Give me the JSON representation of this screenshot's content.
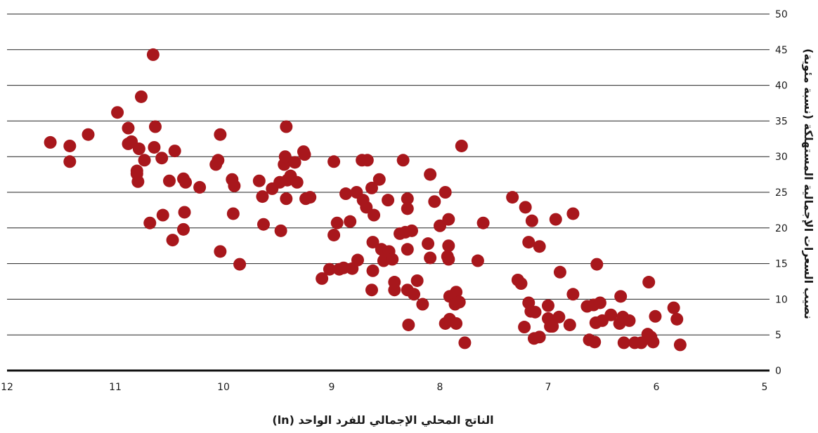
{
  "chart_data": {
    "type": "scatter",
    "xlabel": "الناتج المحلي الإجمالي للفرد الواحد (ln)",
    "ylabel": "نصيب السعرات الإجمالية المستهلكة (نسبة مئوية)",
    "xlim": [
      12,
      5
    ],
    "ylim": [
      0,
      50
    ],
    "x_reversed": true,
    "x_ticks": [
      "12",
      "11",
      "10",
      "9",
      "8",
      "7",
      "6",
      "5"
    ],
    "y_ticks": [
      "0",
      "5",
      "10",
      "15",
      "20",
      "25",
      "30",
      "35",
      "40",
      "45",
      "50"
    ],
    "grid": "horizontal",
    "marker_color": "#a8171c",
    "points": [
      [
        11.6,
        32.0
      ],
      [
        11.42,
        31.5
      ],
      [
        11.42,
        29.3
      ],
      [
        11.25,
        33.1
      ],
      [
        10.98,
        36.2
      ],
      [
        10.88,
        34.0
      ],
      [
        10.88,
        31.8
      ],
      [
        10.85,
        32.1
      ],
      [
        10.8,
        28.0
      ],
      [
        10.8,
        27.6
      ],
      [
        10.79,
        26.5
      ],
      [
        10.78,
        31.1
      ],
      [
        10.76,
        38.4
      ],
      [
        10.73,
        29.5
      ],
      [
        10.68,
        20.7
      ],
      [
        10.65,
        44.3
      ],
      [
        10.64,
        31.3
      ],
      [
        10.63,
        34.2
      ],
      [
        10.57,
        29.8
      ],
      [
        10.56,
        21.8
      ],
      [
        10.5,
        26.6
      ],
      [
        10.47,
        18.3
      ],
      [
        10.45,
        30.8
      ],
      [
        10.37,
        26.9
      ],
      [
        10.36,
        22.2
      ],
      [
        10.37,
        19.8
      ],
      [
        10.35,
        26.4
      ],
      [
        10.22,
        25.7
      ],
      [
        10.07,
        28.9
      ],
      [
        10.05,
        29.5
      ],
      [
        10.03,
        16.7
      ],
      [
        10.03,
        33.1
      ],
      [
        9.92,
        26.8
      ],
      [
        9.91,
        22.0
      ],
      [
        9.9,
        25.9
      ],
      [
        9.85,
        14.9
      ],
      [
        9.67,
        26.6
      ],
      [
        9.64,
        24.4
      ],
      [
        9.63,
        20.5
      ],
      [
        9.55,
        25.5
      ],
      [
        9.48,
        26.4
      ],
      [
        9.47,
        19.6
      ],
      [
        9.44,
        28.9
      ],
      [
        9.43,
        30.0
      ],
      [
        9.42,
        34.2
      ],
      [
        9.42,
        24.1
      ],
      [
        9.41,
        26.7
      ],
      [
        9.38,
        27.3
      ],
      [
        9.34,
        29.2
      ],
      [
        9.32,
        26.4
      ],
      [
        9.26,
        30.7
      ],
      [
        9.24,
        24.1
      ],
      [
        9.25,
        30.3
      ],
      [
        9.2,
        24.3
      ],
      [
        9.09,
        12.9
      ],
      [
        9.02,
        14.2
      ],
      [
        8.98,
        29.3
      ],
      [
        8.98,
        19.0
      ],
      [
        8.95,
        20.7
      ],
      [
        8.93,
        14.2
      ],
      [
        8.89,
        14.4
      ],
      [
        8.87,
        24.8
      ],
      [
        8.83,
        20.9
      ],
      [
        8.81,
        14.3
      ],
      [
        8.77,
        25.0
      ],
      [
        8.76,
        15.5
      ],
      [
        8.72,
        29.5
      ],
      [
        8.71,
        23.9
      ],
      [
        8.68,
        22.9
      ],
      [
        8.67,
        29.5
      ],
      [
        8.63,
        25.6
      ],
      [
        8.62,
        18.0
      ],
      [
        8.63,
        11.3
      ],
      [
        8.62,
        14.0
      ],
      [
        8.61,
        21.8
      ],
      [
        8.56,
        26.8
      ],
      [
        8.54,
        17.0
      ],
      [
        8.52,
        15.4
      ],
      [
        8.5,
        16.0
      ],
      [
        8.48,
        23.9
      ],
      [
        8.47,
        16.7
      ],
      [
        8.44,
        15.6
      ],
      [
        8.42,
        12.4
      ],
      [
        8.42,
        11.3
      ],
      [
        8.37,
        19.2
      ],
      [
        8.34,
        29.5
      ],
      [
        8.32,
        19.4
      ],
      [
        8.3,
        24.1
      ],
      [
        8.3,
        22.7
      ],
      [
        8.3,
        17.0
      ],
      [
        8.3,
        11.3
      ],
      [
        8.29,
        6.4
      ],
      [
        8.26,
        19.6
      ],
      [
        8.24,
        10.7
      ],
      [
        8.21,
        12.6
      ],
      [
        8.16,
        9.3
      ],
      [
        8.11,
        17.8
      ],
      [
        8.09,
        27.5
      ],
      [
        8.09,
        15.8
      ],
      [
        8.05,
        23.7
      ],
      [
        8.0,
        20.3
      ],
      [
        7.95,
        25.0
      ],
      [
        7.95,
        6.6
      ],
      [
        7.93,
        16.0
      ],
      [
        7.92,
        21.2
      ],
      [
        7.92,
        17.5
      ],
      [
        7.92,
        15.6
      ],
      [
        7.91,
        7.2
      ],
      [
        7.91,
        10.4
      ],
      [
        7.87,
        10.6
      ],
      [
        7.86,
        9.3
      ],
      [
        7.85,
        6.6
      ],
      [
        7.85,
        11.0
      ],
      [
        7.82,
        9.6
      ],
      [
        7.8,
        31.5
      ],
      [
        7.77,
        3.9
      ],
      [
        7.65,
        15.4
      ],
      [
        7.6,
        20.7
      ],
      [
        7.33,
        24.3
      ],
      [
        7.28,
        12.7
      ],
      [
        7.25,
        12.2
      ],
      [
        7.22,
        6.1
      ],
      [
        7.21,
        22.9
      ],
      [
        7.18,
        18.0
      ],
      [
        7.18,
        9.5
      ],
      [
        7.16,
        8.3
      ],
      [
        7.15,
        21.0
      ],
      [
        7.13,
        4.5
      ],
      [
        7.12,
        8.2
      ],
      [
        7.08,
        4.7
      ],
      [
        7.08,
        17.4
      ],
      [
        7.0,
        9.1
      ],
      [
        7.0,
        7.3
      ],
      [
        6.98,
        6.2
      ],
      [
        6.96,
        6.2
      ],
      [
        6.93,
        21.2
      ],
      [
        6.89,
        13.8
      ],
      [
        6.9,
        7.5
      ],
      [
        6.8,
        6.4
      ],
      [
        6.77,
        22.0
      ],
      [
        6.77,
        10.7
      ],
      [
        6.64,
        9.0
      ],
      [
        6.62,
        4.3
      ],
      [
        6.58,
        9.2
      ],
      [
        6.57,
        4.0
      ],
      [
        6.56,
        6.7
      ],
      [
        6.55,
        14.9
      ],
      [
        6.52,
        9.5
      ],
      [
        6.5,
        7.0
      ],
      [
        6.42,
        7.8
      ],
      [
        6.34,
        6.6
      ],
      [
        6.33,
        10.4
      ],
      [
        6.31,
        7.5
      ],
      [
        6.3,
        3.9
      ],
      [
        6.25,
        7.0
      ],
      [
        6.2,
        3.9
      ],
      [
        6.14,
        3.9
      ],
      [
        6.08,
        5.1
      ],
      [
        6.07,
        12.4
      ],
      [
        6.05,
        4.7
      ],
      [
        6.03,
        4.0
      ],
      [
        6.01,
        7.6
      ],
      [
        5.84,
        8.8
      ],
      [
        5.81,
        7.2
      ],
      [
        5.78,
        3.6
      ]
    ]
  }
}
